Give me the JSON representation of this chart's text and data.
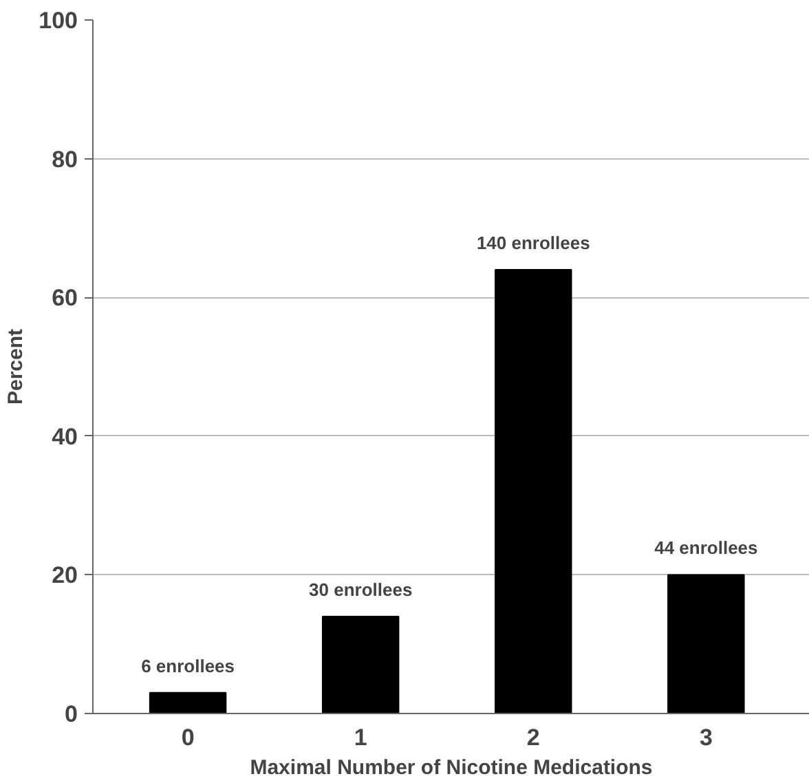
{
  "chart_data": {
    "type": "bar",
    "xlabel": "Maximal Number of Nicotine Medications",
    "ylabel": "Percent",
    "categories": [
      "0",
      "1",
      "2",
      "3"
    ],
    "values": [
      3,
      14,
      64,
      20
    ],
    "color": "#000000",
    "ylim": [
      0,
      100
    ],
    "yticks": [
      0,
      20,
      40,
      60,
      80,
      100
    ],
    "grid": "y",
    "annotations": [
      {
        "text": "6 enrollees",
        "x": "0",
        "y": 3
      },
      {
        "text": "30 enrollees",
        "x": "1",
        "y": 14
      },
      {
        "text": "140 enrollees",
        "x": "2",
        "y": 64
      },
      {
        "text": "44 enrollees",
        "x": "3",
        "y": 20
      }
    ]
  }
}
